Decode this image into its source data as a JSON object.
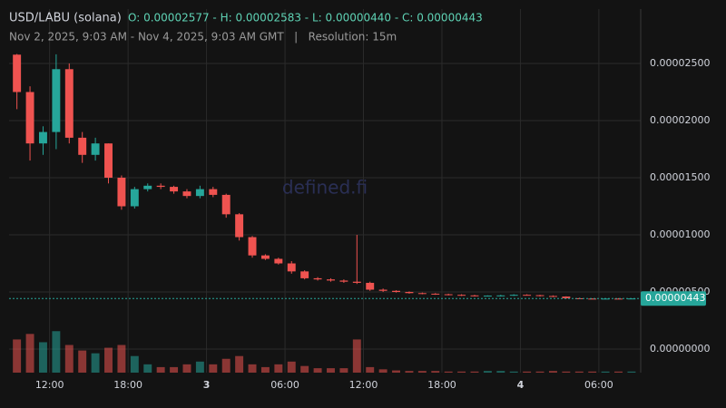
{
  "chart_data": {
    "type": "candlestick",
    "pair": "USD/LABU (solana)",
    "ohlc": "O: 0.00002577 - H: 0.00002583 - L: 0.00000440 - C: 0.00000443",
    "subtitle": "Nov 2, 2025, 9:03 AM - Nov 4, 2025, 9:03 AM GMT   |   Resolution: 15m",
    "watermark": "defined.fi",
    "up_color": "#26a69a",
    "down_color": "#ef5350",
    "x": [
      9.5,
      10.5,
      11.5,
      12.5,
      13.5,
      14.5,
      15.5,
      16.5,
      17.5,
      18.5,
      19.5,
      20.5,
      21.5,
      22.5,
      23.5,
      24.5,
      25.5,
      26.5,
      27.5,
      28.5,
      29.5,
      30.5,
      31.5,
      32.5,
      33.5,
      34.5,
      35.5,
      36.5,
      37.5,
      38.5,
      39.5,
      40.5,
      41.5,
      42.5,
      43.5,
      44.5,
      45.5,
      46.5,
      47.5,
      48.5,
      49.5,
      50.5,
      51.5,
      52.5,
      53.5,
      54.5,
      55.5,
      56.5
    ],
    "open": [
      2.577e-05,
      2.25e-05,
      1.8e-05,
      1.9e-05,
      2.45e-05,
      1.85e-05,
      1.7e-05,
      1.8e-05,
      1.5e-05,
      1.25e-05,
      1.4e-05,
      1.43e-05,
      1.42e-05,
      1.38e-05,
      1.34e-05,
      1.4e-05,
      1.35e-05,
      1.18e-05,
      9.8e-06,
      8.2e-06,
      7.9e-06,
      7.5e-06,
      6.8e-06,
      6.2e-06,
      6.1e-06,
      6e-06,
      5.9e-06,
      5.8e-06,
      5.2e-06,
      5.1e-06,
      5e-06,
      4.9e-06,
      4.85e-06,
      4.8e-06,
      4.75e-06,
      4.7e-06,
      4.65e-06,
      4.68e-06,
      4.7e-06,
      4.75e-06,
      4.72e-06,
      4.65e-06,
      4.6e-06,
      4.45e-06,
      4.42e-06,
      4.4e-06,
      4.42e-06,
      4.41e-06
    ],
    "high": [
      2.583e-05,
      2.3e-05,
      1.95e-05,
      2.58e-05,
      2.5e-05,
      1.9e-05,
      1.85e-05,
      1.8e-05,
      1.52e-05,
      1.42e-05,
      1.45e-05,
      1.45e-05,
      1.43e-05,
      1.4e-05,
      1.43e-05,
      1.42e-05,
      1.36e-05,
      1.19e-05,
      9.9e-06,
      8.3e-06,
      8e-06,
      7.7e-06,
      6.9e-06,
      6.3e-06,
      6.2e-06,
      6.1e-06,
      1e-05,
      5.9e-06,
      5.3e-06,
      5.15e-06,
      5.05e-06,
      4.95e-06,
      4.9e-06,
      4.85e-06,
      4.8e-06,
      4.75e-06,
      4.7e-06,
      4.75e-06,
      4.8e-06,
      4.8e-06,
      4.75e-06,
      4.7e-06,
      4.62e-06,
      4.5e-06,
      4.45e-06,
      4.45e-06,
      4.46e-06,
      4.45e-06
    ],
    "low": [
      2.1e-05,
      1.65e-05,
      1.7e-05,
      1.75e-05,
      1.8e-05,
      1.63e-05,
      1.65e-05,
      1.45e-05,
      1.22e-05,
      1.23e-05,
      1.38e-05,
      1.4e-05,
      1.36e-05,
      1.32e-05,
      1.32e-05,
      1.33e-05,
      1.15e-05,
      9.5e-06,
      8e-06,
      7.8e-06,
      7.4e-06,
      6.6e-06,
      6.1e-06,
      6e-06,
      5.9e-06,
      5.8e-06,
      5.7e-06,
      5.1e-06,
      5e-06,
      4.95e-06,
      4.85e-06,
      4.8e-06,
      4.75e-06,
      4.7e-06,
      4.65e-06,
      4.6e-06,
      4.6e-06,
      4.6e-06,
      4.65e-06,
      4.7e-06,
      4.6e-06,
      4.55e-06,
      4.4e-06,
      4.4e-06,
      4.4e-06,
      4.4e-06,
      4.4e-06,
      4.4e-06
    ],
    "close": [
      2.25e-05,
      1.8e-05,
      1.9e-05,
      2.45e-05,
      1.85e-05,
      1.7e-05,
      1.8e-05,
      1.5e-05,
      1.25e-05,
      1.4e-05,
      1.43e-05,
      1.42e-05,
      1.38e-05,
      1.34e-05,
      1.4e-05,
      1.35e-05,
      1.18e-05,
      9.8e-06,
      8.2e-06,
      7.9e-06,
      7.5e-06,
      6.8e-06,
      6.2e-06,
      6.1e-06,
      6e-06,
      5.9e-06,
      5.8e-06,
      5.2e-06,
      5.1e-06,
      5e-06,
      4.9e-06,
      4.85e-06,
      4.8e-06,
      4.75e-06,
      4.7e-06,
      4.65e-06,
      4.68e-06,
      4.7e-06,
      4.75e-06,
      4.72e-06,
      4.65e-06,
      4.6e-06,
      4.45e-06,
      4.42e-06,
      4.4e-06,
      4.42e-06,
      4.41e-06,
      4.43e-06
    ],
    "volume": [
      60,
      70,
      55,
      75,
      50,
      40,
      35,
      45,
      50,
      30,
      15,
      10,
      10,
      15,
      20,
      15,
      25,
      30,
      15,
      10,
      15,
      20,
      12,
      8,
      8,
      8,
      60,
      10,
      6,
      4,
      3,
      3,
      3,
      2,
      2,
      2,
      3,
      3,
      2,
      2,
      2,
      3,
      2,
      2,
      2,
      2,
      2,
      2
    ],
    "vlim": [
      0,
      100
    ],
    "xlim": [
      8.9,
      57.2
    ],
    "xticks": [
      {
        "value": 12,
        "label": "12:00"
      },
      {
        "value": 18,
        "label": "18:00"
      },
      {
        "value": 24,
        "label": "3",
        "bold": true
      },
      {
        "value": 30,
        "label": "06:00"
      },
      {
        "value": 36,
        "label": "12:00"
      },
      {
        "value": 42,
        "label": "18:00"
      },
      {
        "value": 48,
        "label": "4",
        "bold": true
      },
      {
        "value": 54,
        "label": "06:00"
      }
    ],
    "ylim": [
      -2.06e-06,
      2.976e-05
    ],
    "yticks": [
      {
        "value": 0,
        "label": "0.00000000"
      },
      {
        "value": 5e-06,
        "label": "0.00000500"
      },
      {
        "value": 1e-05,
        "label": "0.00001000"
      },
      {
        "value": 1.5e-05,
        "label": "0.00001500"
      },
      {
        "value": 2e-05,
        "label": "0.00002000"
      },
      {
        "value": 2.5e-05,
        "label": "0.00002500"
      }
    ],
    "last_price": {
      "value": 4.43e-06,
      "label": "0.00000443"
    },
    "grid": true
  }
}
